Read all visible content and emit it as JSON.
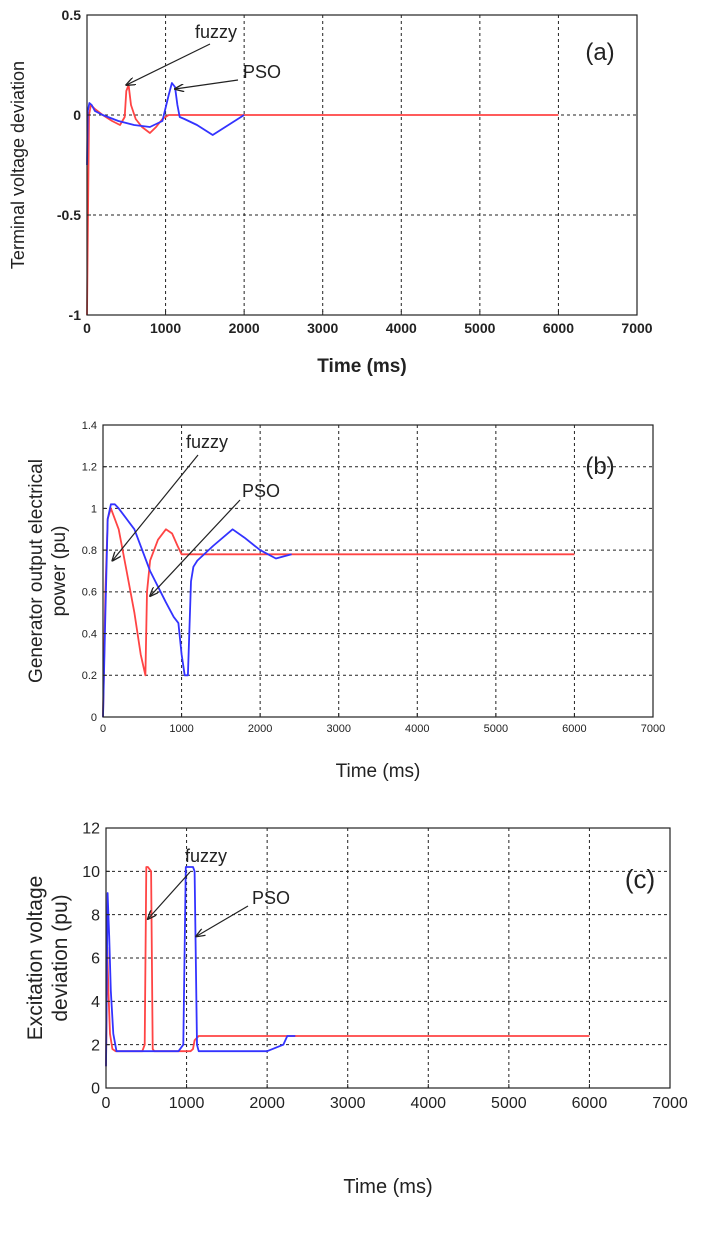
{
  "chart_data": [
    {
      "type": "line",
      "panel_label": "(a)",
      "title": "",
      "xlabel": "Time (ms)",
      "ylabel": "Terminal voltage deviation",
      "xlim": [
        0,
        7000
      ],
      "ylim": [
        -1,
        0.5
      ],
      "x_ticks": [
        0,
        1000,
        2000,
        3000,
        4000,
        5000,
        6000,
        7000
      ],
      "y_ticks": [
        -1,
        -0.5,
        0,
        0.5
      ],
      "grid": true,
      "series": [
        {
          "name": "fuzzy",
          "color": "#ff4444",
          "x": [
            0,
            10,
            25,
            50,
            100,
            200,
            320,
            420,
            480,
            500,
            530,
            560,
            620,
            700,
            800,
            880,
            960,
            1040,
            1200,
            2000,
            4000,
            6000
          ],
          "y": [
            -1,
            -0.6,
            0.0,
            0.05,
            0.03,
            0.0,
            -0.03,
            -0.05,
            -0.01,
            0.12,
            0.15,
            0.05,
            -0.02,
            -0.06,
            -0.09,
            -0.06,
            -0.02,
            0.0,
            0.0,
            0.0,
            0.0,
            0.0
          ]
        },
        {
          "name": "PSO",
          "color": "#3333ff",
          "x": [
            0,
            10,
            30,
            60,
            100,
            200,
            400,
            600,
            800,
            960,
            1040,
            1080,
            1120,
            1150,
            1180,
            1240,
            1400,
            1600,
            1800,
            2000
          ],
          "y": [
            -0.25,
            0.02,
            0.06,
            0.05,
            0.02,
            0.0,
            -0.03,
            -0.05,
            -0.06,
            -0.03,
            0.1,
            0.16,
            0.14,
            0.05,
            -0.01,
            -0.02,
            -0.05,
            -0.1,
            -0.05,
            0.0
          ]
        }
      ],
      "annotations": [
        {
          "text": "fuzzy",
          "points_to": [
            500,
            0.15
          ]
        },
        {
          "text": "PSO",
          "points_to": [
            1120,
            0.13
          ]
        }
      ]
    },
    {
      "type": "line",
      "panel_label": "(b)",
      "title": "",
      "xlabel": "Time (ms)",
      "ylabel": "Generator output electrical power (pu)",
      "xlim": [
        0,
        7000
      ],
      "ylim": [
        0,
        1.4
      ],
      "x_ticks": [
        0,
        1000,
        2000,
        3000,
        4000,
        5000,
        6000,
        7000
      ],
      "y_ticks": [
        0,
        0.2,
        0.4,
        0.6,
        0.8,
        1,
        1.2,
        1.4
      ],
      "grid": true,
      "series": [
        {
          "name": "fuzzy",
          "color": "#ff4444",
          "x": [
            0,
            30,
            60,
            100,
            200,
            300,
            400,
            480,
            540,
            560,
            600,
            700,
            800,
            880,
            950,
            1000,
            2000,
            4000,
            6000
          ],
          "y": [
            0,
            0.6,
            0.95,
            1.0,
            0.9,
            0.7,
            0.5,
            0.3,
            0.2,
            0.6,
            0.75,
            0.85,
            0.9,
            0.88,
            0.82,
            0.78,
            0.78,
            0.78,
            0.78
          ]
        },
        {
          "name": "PSO",
          "color": "#3333ff",
          "x": [
            0,
            30,
            60,
            100,
            150,
            200,
            400,
            600,
            800,
            900,
            960,
            1000,
            1040,
            1080,
            1120,
            1150,
            1200,
            1400,
            1650,
            1800,
            2000,
            2200,
            2400
          ],
          "y": [
            0,
            0.5,
            0.95,
            1.02,
            1.02,
            1.0,
            0.9,
            0.7,
            0.55,
            0.48,
            0.45,
            0.3,
            0.2,
            0.2,
            0.65,
            0.72,
            0.75,
            0.82,
            0.9,
            0.86,
            0.8,
            0.76,
            0.78
          ]
        }
      ],
      "annotations": [
        {
          "text": "fuzzy",
          "points_to": [
            120,
            0.75
          ]
        },
        {
          "text": "PSO",
          "points_to": [
            600,
            0.58
          ]
        }
      ]
    },
    {
      "type": "line",
      "panel_label": "(c)",
      "title": "",
      "xlabel": "Time (ms)",
      "ylabel": "Excitation voltage deviation (pu)",
      "xlim": [
        0,
        7000
      ],
      "ylim": [
        0,
        12
      ],
      "x_ticks": [
        0,
        1000,
        2000,
        3000,
        4000,
        5000,
        6000,
        7000
      ],
      "y_ticks": [
        0,
        2,
        4,
        6,
        8,
        10,
        12
      ],
      "grid": true,
      "series": [
        {
          "name": "fuzzy",
          "color": "#ff4444",
          "x": [
            0,
            15,
            30,
            50,
            80,
            120,
            450,
            480,
            500,
            520,
            560,
            580,
            600,
            1050,
            1080,
            1100,
            1150,
            6000
          ],
          "y": [
            1,
            6.5,
            4.5,
            2.5,
            1.8,
            1.7,
            1.7,
            2.0,
            10.2,
            10.2,
            10.0,
            1.8,
            1.7,
            1.7,
            1.8,
            2.2,
            2.4,
            2.4
          ]
        },
        {
          "name": "PSO",
          "color": "#3333ff",
          "x": [
            0,
            20,
            40,
            60,
            90,
            120,
            130,
            500,
            700,
            900,
            960,
            990,
            1000,
            1080,
            1100,
            1130,
            1150,
            2000,
            2200,
            2250,
            2350
          ],
          "y": [
            1,
            9.0,
            7.0,
            4.5,
            2.5,
            1.9,
            1.7,
            1.7,
            1.7,
            1.7,
            2.0,
            10.2,
            10.2,
            10.2,
            10.0,
            2.0,
            1.7,
            1.7,
            2.0,
            2.4,
            2.4
          ]
        }
      ],
      "annotations": [
        {
          "text": "fuzzy",
          "points_to": [
            520,
            7.8
          ]
        },
        {
          "text": "PSO",
          "points_to": [
            1120,
            7.0
          ]
        }
      ]
    }
  ]
}
